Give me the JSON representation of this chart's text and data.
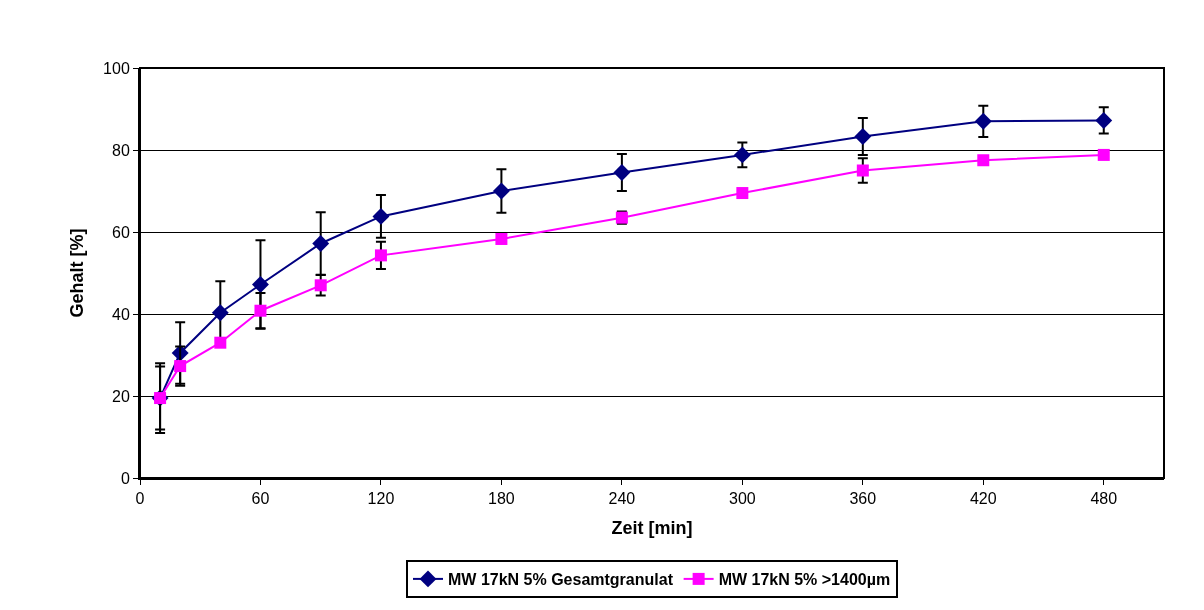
{
  "chart_data": {
    "type": "line",
    "xlabel": "Zeit [min]",
    "ylabel": "Gehalt [%]",
    "x": [
      10,
      20,
      40,
      60,
      90,
      120,
      180,
      240,
      300,
      360,
      420,
      480
    ],
    "series": [
      {
        "name": "MW 17kN 5% Gesamtgranulat",
        "color": "#000080",
        "marker": "diamond",
        "values": [
          19.5,
          30.5,
          40.3,
          47.2,
          57.2,
          63.8,
          70,
          74.5,
          78.8,
          83.3,
          87,
          87.2
        ],
        "errors": [
          8.5,
          7.5,
          7.7,
          10.8,
          7.6,
          5.2,
          5.3,
          4.5,
          3,
          4.5,
          3.8,
          3.2
        ]
      },
      {
        "name": "MW 17kN 5% >1400µm",
        "color": "#ff00ff",
        "marker": "square",
        "values": [
          19.5,
          27.3,
          33,
          40.8,
          47,
          54.3,
          58.3,
          63.5,
          69.5,
          75,
          77.5,
          78.8
        ],
        "errors": [
          7.7,
          4.8,
          null,
          4.3,
          2.5,
          3.3,
          null,
          1.5,
          null,
          3,
          null,
          null
        ]
      }
    ],
    "xlim": [
      0,
      510
    ],
    "xticks": [
      0,
      60,
      120,
      180,
      240,
      300,
      360,
      420,
      480
    ],
    "ylim": [
      0,
      100
    ],
    "yticks": [
      0,
      20,
      40,
      60,
      80,
      100
    ],
    "grid": "y",
    "legend": "bottom",
    "line_style": "solid"
  }
}
